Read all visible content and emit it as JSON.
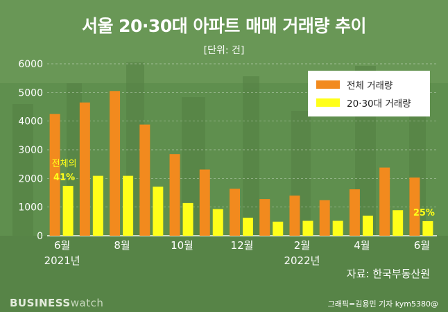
{
  "title": "서울 20·30대 아파트 매매 거래량 추이",
  "unit_label": "[단위: 건]",
  "source": "자료: 한국부동산원",
  "brand": {
    "part1": "BUSINESS",
    "part2": "watch"
  },
  "credit": "그래픽=김용민 기자 kym5380@",
  "colors": {
    "total": "#f28a1e",
    "young": "#ffff19",
    "background": "#5f8f4e",
    "axis_text": "#ffffff",
    "annotation": "#ffff19"
  },
  "chart_data": {
    "type": "bar",
    "categories": [
      "2021-06",
      "2021-07",
      "2021-08",
      "2021-09",
      "2021-10",
      "2021-11",
      "2021-12",
      "2022-01",
      "2022-02",
      "2022-03",
      "2022-04",
      "2022-05",
      "2022-06"
    ],
    "x_tick_labels": [
      {
        "index": 0,
        "month": "6월",
        "year": "2021년"
      },
      {
        "index": 2,
        "month": "8월"
      },
      {
        "index": 4,
        "month": "10월"
      },
      {
        "index": 6,
        "month": "12월"
      },
      {
        "index": 8,
        "month": "2월",
        "year": "2022년"
      },
      {
        "index": 10,
        "month": "4월"
      },
      {
        "index": 12,
        "month": "6월"
      }
    ],
    "series": [
      {
        "name": "전체 거래량",
        "color": "#f28a1e",
        "values": [
          4250,
          4650,
          5050,
          3880,
          2850,
          2310,
          1640,
          1280,
          1400,
          1240,
          1620,
          2380,
          2030
        ]
      },
      {
        "name": "20·30대 거래량",
        "color": "#ffff19",
        "values": [
          1740,
          2090,
          2090,
          1710,
          1140,
          930,
          630,
          490,
          520,
          520,
          700,
          890,
          510
        ]
      }
    ],
    "ylim": [
      0,
      6000
    ],
    "yticks": [
      0,
      1000,
      2000,
      3000,
      4000,
      5000,
      6000
    ],
    "grid": true,
    "legend_position": "top-right",
    "annotations": [
      {
        "index": 0,
        "lines": [
          "전체의",
          "41%"
        ]
      },
      {
        "index": 12,
        "lines": [
          "25%"
        ]
      }
    ]
  }
}
